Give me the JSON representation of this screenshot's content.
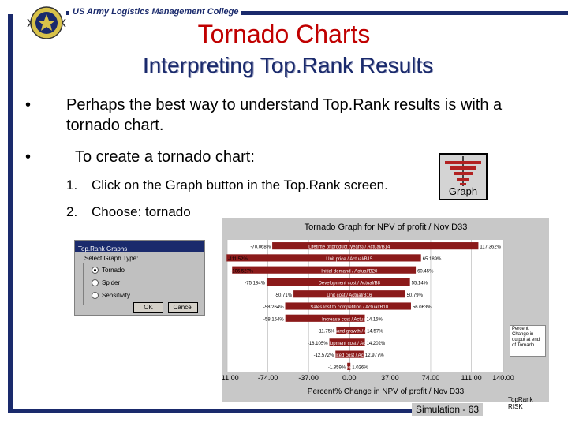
{
  "header": {
    "org_name": "US Army Logistics Management College",
    "title": "Tornado Charts",
    "subtitle": "Interpreting Top.Rank Results"
  },
  "bullets": [
    {
      "marker": "•",
      "text": "Perhaps the best way to understand Top.Rank results is with a tornado chart."
    },
    {
      "marker": "•",
      "text": "To create a tornado chart:"
    }
  ],
  "steps": [
    {
      "num": "1.",
      "text": "Click on the Graph button in the Top.Rank screen."
    },
    {
      "num": "2.",
      "text": "Choose: tornado"
    }
  ],
  "graph_button": {
    "label": "Graph",
    "icon": "tornado-icon",
    "color": "#b22222"
  },
  "dialog": {
    "title": "Top.Rank Graphs",
    "select_label": "Select Graph Type:",
    "options": [
      {
        "label": "Tornado",
        "selected": true
      },
      {
        "label": "Spider",
        "selected": false
      },
      {
        "label": "Sensitivity",
        "selected": false
      }
    ],
    "ok_label": "OK",
    "cancel_label": "Cancel"
  },
  "chart_data": {
    "type": "bar",
    "orientation": "horizontal",
    "title": "Tornado Graph for NPV of profit / Nov D33",
    "xlabel": "Percent% Change in NPV of profit / Nov D33",
    "x_ticks": [
      "-111.00",
      "-74.00",
      "-37.00",
      "0.00",
      "37.00",
      "74.00",
      "111.00",
      "140.00"
    ],
    "xlim": [
      -111,
      140
    ],
    "series_color": "#8b1a1a",
    "categories": [
      "Lifetime of product (years) / Actual/B14",
      "Unit price / Actual/B15",
      "Initial demand / Actual/B20",
      "Development cost / Actual/B8",
      "Unit cost / Actual/B16",
      "Sales lost to competition / Actual/B10",
      "Increase cost / Actual/B13",
      "Annual demand growth / Actual/B19",
      "Development cost / Actual/B7",
      "Annual fixed cost / Actual/B11",
      "Salvage value / Actual/B12"
    ],
    "low_labels": [
      "-70.068%",
      "-111.52%",
      "-106.527%",
      "-75.184%",
      "-50.71%",
      "-58.264%",
      "-58.154%",
      "-11.75%",
      "-18.105%",
      "-12.572%",
      "-1.859%"
    ],
    "high_labels": [
      "117.362%",
      "65.189%",
      "60.45%",
      "55.14%",
      "50.79%",
      "56.063%",
      "14.15%",
      "14.57%",
      "14.202%",
      "12.977%",
      "1.026%"
    ],
    "low": [
      -70.068,
      -111.52,
      -106.527,
      -75.184,
      -50.71,
      -58.264,
      -58.154,
      -11.75,
      -18.105,
      -12.572,
      -1.859
    ],
    "high": [
      117.362,
      65.189,
      60.45,
      55.14,
      50.79,
      56.063,
      14.15,
      14.57,
      14.202,
      12.977,
      1.026
    ],
    "legend": "Percent Change in output at end of Tornado",
    "brand": "TopRank RISK"
  },
  "footer": {
    "page_label": "Simulation - 63"
  }
}
